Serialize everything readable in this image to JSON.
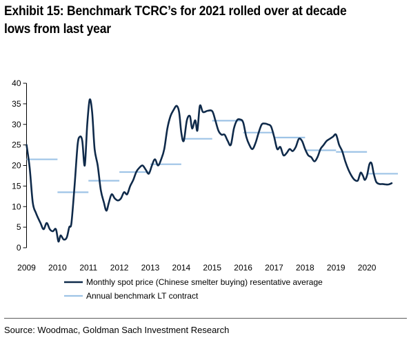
{
  "chart_data": {
    "type": "line",
    "title": "Exhibit 15: Benchmark TCRC’s for 2021 rolled over at decade lows from last year",
    "xlabel": "",
    "ylabel": "",
    "xlim": [
      2009,
      2021.2
    ],
    "ylim": [
      0,
      40
    ],
    "y_ticks": [
      "0",
      "5",
      "10",
      "15",
      "20",
      "25",
      "30",
      "35",
      "40"
    ],
    "x_ticks": [
      "2009",
      "2010",
      "2011",
      "2012",
      "2013",
      "2014",
      "2015",
      "2016",
      "2017",
      "2018",
      "2019",
      "2020"
    ],
    "grid": false,
    "legend_position": "bottom",
    "series": [
      {
        "name": "Monthly spot price (Chinese smelter buying) resentative average",
        "color": "#0f2a4a",
        "style": "line",
        "points": [
          [
            2009.0,
            25
          ],
          [
            2009.1,
            19.5
          ],
          [
            2009.2,
            11
          ],
          [
            2009.3,
            8.5
          ],
          [
            2009.45,
            6
          ],
          [
            2009.55,
            4.5
          ],
          [
            2009.65,
            6
          ],
          [
            2009.75,
            4.5
          ],
          [
            2009.85,
            4
          ],
          [
            2009.95,
            4.5
          ],
          [
            2010.03,
            1.5
          ],
          [
            2010.1,
            3
          ],
          [
            2010.2,
            2
          ],
          [
            2010.3,
            2.5
          ],
          [
            2010.38,
            5
          ],
          [
            2010.45,
            6
          ],
          [
            2010.55,
            15
          ],
          [
            2010.65,
            25
          ],
          [
            2010.72,
            27
          ],
          [
            2010.8,
            26
          ],
          [
            2010.88,
            20
          ],
          [
            2010.96,
            30
          ],
          [
            2011.04,
            36
          ],
          [
            2011.12,
            33
          ],
          [
            2011.2,
            24
          ],
          [
            2011.3,
            20
          ],
          [
            2011.4,
            14
          ],
          [
            2011.5,
            11
          ],
          [
            2011.58,
            9
          ],
          [
            2011.66,
            11
          ],
          [
            2011.75,
            13
          ],
          [
            2011.85,
            12
          ],
          [
            2011.95,
            11.5
          ],
          [
            2012.05,
            12
          ],
          [
            2012.15,
            13.5
          ],
          [
            2012.25,
            13
          ],
          [
            2012.35,
            15
          ],
          [
            2012.45,
            16.5
          ],
          [
            2012.55,
            18.5
          ],
          [
            2012.65,
            19.5
          ],
          [
            2012.75,
            20
          ],
          [
            2012.85,
            19
          ],
          [
            2012.95,
            18
          ],
          [
            2013.05,
            20
          ],
          [
            2013.15,
            21.5
          ],
          [
            2013.25,
            20
          ],
          [
            2013.35,
            21.5
          ],
          [
            2013.45,
            24
          ],
          [
            2013.55,
            29
          ],
          [
            2013.65,
            32
          ],
          [
            2013.75,
            33.5
          ],
          [
            2013.85,
            34.5
          ],
          [
            2013.93,
            33
          ],
          [
            2014.0,
            28
          ],
          [
            2014.08,
            26
          ],
          [
            2014.18,
            31
          ],
          [
            2014.28,
            32
          ],
          [
            2014.35,
            29
          ],
          [
            2014.45,
            31
          ],
          [
            2014.52,
            28.5
          ],
          [
            2014.6,
            34.5
          ],
          [
            2014.7,
            33
          ],
          [
            2014.85,
            33.3
          ],
          [
            2015.0,
            33.2
          ],
          [
            2015.1,
            31
          ],
          [
            2015.2,
            28.5
          ],
          [
            2015.3,
            27.5
          ],
          [
            2015.4,
            27.5
          ],
          [
            2015.5,
            26
          ],
          [
            2015.6,
            25
          ],
          [
            2015.7,
            29
          ],
          [
            2015.8,
            31
          ],
          [
            2015.9,
            31.2
          ],
          [
            2016.0,
            30.5
          ],
          [
            2016.1,
            27
          ],
          [
            2016.2,
            25
          ],
          [
            2016.3,
            24
          ],
          [
            2016.4,
            25.5
          ],
          [
            2016.5,
            28
          ],
          [
            2016.6,
            30
          ],
          [
            2016.7,
            30.2
          ],
          [
            2016.8,
            30
          ],
          [
            2016.9,
            29.5
          ],
          [
            2017.0,
            27
          ],
          [
            2017.1,
            24
          ],
          [
            2017.2,
            24.5
          ],
          [
            2017.3,
            22.5
          ],
          [
            2017.4,
            23
          ],
          [
            2017.5,
            24
          ],
          [
            2017.6,
            23.5
          ],
          [
            2017.7,
            24.5
          ],
          [
            2017.8,
            26.5
          ],
          [
            2017.9,
            26
          ],
          [
            2018.0,
            24
          ],
          [
            2018.1,
            22.5
          ],
          [
            2018.2,
            22
          ],
          [
            2018.3,
            21
          ],
          [
            2018.4,
            22
          ],
          [
            2018.5,
            24
          ],
          [
            2018.6,
            25
          ],
          [
            2018.7,
            26
          ],
          [
            2018.8,
            26.5
          ],
          [
            2018.9,
            27
          ],
          [
            2019.0,
            27.5
          ],
          [
            2019.1,
            25
          ],
          [
            2019.2,
            23.5
          ],
          [
            2019.3,
            21
          ],
          [
            2019.4,
            19
          ],
          [
            2019.5,
            17.5
          ],
          [
            2019.6,
            16.5
          ],
          [
            2019.7,
            16.3
          ],
          [
            2019.75,
            17.3
          ],
          [
            2019.8,
            18.3
          ],
          [
            2019.87,
            17.5
          ],
          [
            2019.93,
            16.5
          ],
          [
            2020.0,
            17.5
          ],
          [
            2020.08,
            20.3
          ],
          [
            2020.15,
            20.5
          ],
          [
            2020.22,
            18
          ],
          [
            2020.3,
            16
          ],
          [
            2020.4,
            15.5
          ],
          [
            2020.5,
            15.5
          ],
          [
            2020.6,
            15.4
          ],
          [
            2020.7,
            15.4
          ],
          [
            2020.8,
            15.7
          ]
        ]
      },
      {
        "name": "Annual benchmark LT contract",
        "color": "#9dc3e6",
        "style": "step",
        "segments": [
          {
            "year": 2009,
            "value": 21.5
          },
          {
            "year": 2010,
            "value": 13.5
          },
          {
            "year": 2011,
            "value": 16.3
          },
          {
            "year": 2012,
            "value": 18.4
          },
          {
            "year": 2013,
            "value": 20.3
          },
          {
            "year": 2014,
            "value": 26.5
          },
          {
            "year": 2015,
            "value": 30.9
          },
          {
            "year": 2016,
            "value": 28.0
          },
          {
            "year": 2017,
            "value": 26.8
          },
          {
            "year": 2018,
            "value": 23.7
          },
          {
            "year": 2019,
            "value": 23.3
          },
          {
            "year": 2020,
            "value": 18.0
          }
        ]
      }
    ]
  },
  "footer": {
    "source": "Source: Woodmac, Goldman Sach Investment Research"
  }
}
